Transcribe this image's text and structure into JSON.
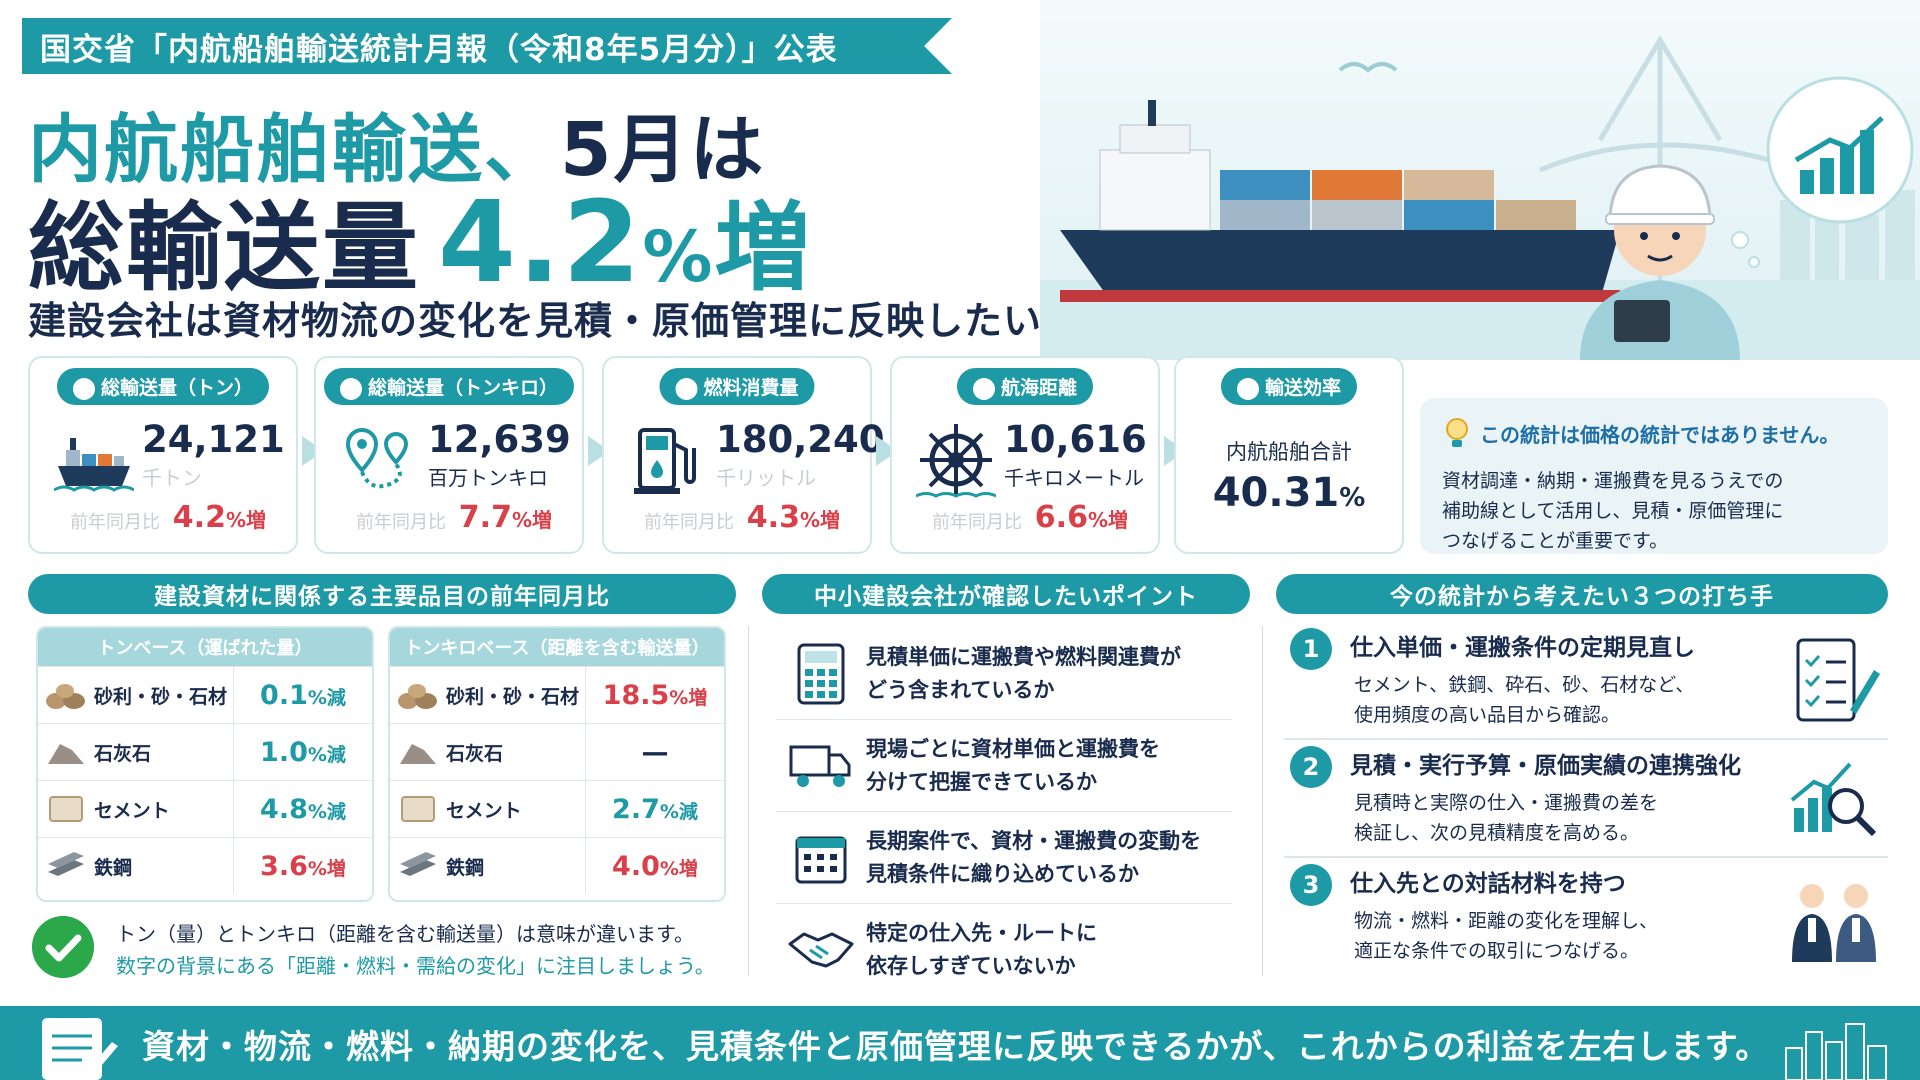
{
  "header": {
    "ribbon": "国交省「内航船舶輸送統計月報（令和8年5月分）」公表",
    "title_line1_a": "内航船舶輸送、",
    "title_line1_b": "5月は",
    "title_line2_a": "総輸送量",
    "title_line2_num": "4.2",
    "title_line2_pct": "%",
    "title_line2_b": "増",
    "subtitle": "建設会社は資材物流の変化を見積・原価管理に反映したい"
  },
  "stats": [
    {
      "label": "総輸送量（トン）",
      "value": "24,121",
      "unit": "千トン",
      "yoy_label": "前年同月比",
      "yoy_num": "4.2",
      "yoy_suffix": "%増",
      "icon": "ship-icon"
    },
    {
      "label": "総輸送量（トンキロ）",
      "value": "12,639",
      "unit": "百万トンキロ",
      "yoy_label": "前年同月比",
      "yoy_num": "7.7",
      "yoy_suffix": "%増",
      "icon": "route-pin-icon"
    },
    {
      "label": "燃料消費量",
      "value": "180,240",
      "unit": "千リットル",
      "yoy_label": "前年同月比",
      "yoy_num": "4.3",
      "yoy_suffix": "%増",
      "icon": "fuel-pump-icon"
    },
    {
      "label": "航海距離",
      "value": "10,616",
      "unit": "千キロメートル",
      "yoy_label": "前年同月比",
      "yoy_num": "6.6",
      "yoy_suffix": "%増",
      "icon": "ship-wheel-icon"
    }
  ],
  "efficiency": {
    "label": "輸送効率",
    "sub": "内航船舶合計",
    "value": "40.31",
    "pct": "%"
  },
  "note": {
    "title": "この統計は価格の統計ではありません。",
    "text_l1": "資材調達・納期・運搬費を見るうえでの",
    "text_l2": "補助線として活用し、見積・原価管理に",
    "text_l3": "つなげることが重要です。"
  },
  "sections": {
    "left": "建設資材に関係する主要品目の前年同月比",
    "middle": "中小建設会社が確認したいポイント",
    "right": "今の統計から考えたい３つの打ち手"
  },
  "table_ton": {
    "header": "トンベース（運ばれた量）",
    "rows": [
      {
        "name": "砂利・砂・石材",
        "num": "0.1",
        "suffix": "%減"
      },
      {
        "name": "石灰石",
        "num": "1.0",
        "suffix": "%減"
      },
      {
        "name": "セメント",
        "num": "4.8",
        "suffix": "%減"
      },
      {
        "name": "鉄鋼",
        "num": "3.6",
        "suffix": "%増"
      }
    ]
  },
  "table_tonkm": {
    "header": "トンキロベース（距離を含む輸送量）",
    "rows": [
      {
        "name": "砂利・砂・石材",
        "num": "18.5",
        "suffix": "%増"
      },
      {
        "name": "石灰石",
        "num": "—",
        "suffix": ""
      },
      {
        "name": "セメント",
        "num": "2.7",
        "suffix": "%減"
      },
      {
        "name": "鉄鋼",
        "num": "4.0",
        "suffix": "%増"
      }
    ]
  },
  "check_note": {
    "line1": "トン（量）とトンキロ（距離を含む輸送量）は意味が違います。",
    "line2": "数字の背景にある「距離・燃料・需給の変化」に注目しましょう。"
  },
  "points": [
    {
      "l1": "見積単価に運搬費や燃料関連費が",
      "l2": "どう含まれているか"
    },
    {
      "l1": "現場ごとに資材単価と運搬費を",
      "l2": "分けて把握できているか"
    },
    {
      "l1": "長期案件で、資材・運搬費の変動を",
      "l2": "見積条件に織り込めているか"
    },
    {
      "l1": "特定の仕入先・ルートに",
      "l2": "依存しすぎていないか"
    }
  ],
  "actions": [
    {
      "num": "1",
      "title": "仕入単価・運搬条件の定期見直し",
      "d1": "セメント、鉄鋼、砕石、砂、石材など、",
      "d2": "使用頻度の高い品目から確認。"
    },
    {
      "num": "2",
      "title": "見積・実行予算・原価実績の連携強化",
      "d1": "見積時と実際の仕入・運搬費の差を",
      "d2": "検証し、次の見積精度を高める。"
    },
    {
      "num": "3",
      "title": "仕入先との対話材料を持つ",
      "d1": "物流・燃料・距離の変化を理解し、",
      "d2": "適正な条件での取引につなげる。"
    }
  ],
  "footer": {
    "text": "資材・物流・燃料・納期の変化を、見積条件と原価管理に反映できるかが、これからの利益を左右します。"
  },
  "colors": {
    "accent": "#1d9aa6",
    "navy": "#1a2c4e",
    "increase": "#d9404a",
    "decrease": "#1d9aa6",
    "check": "#2ba84a"
  }
}
